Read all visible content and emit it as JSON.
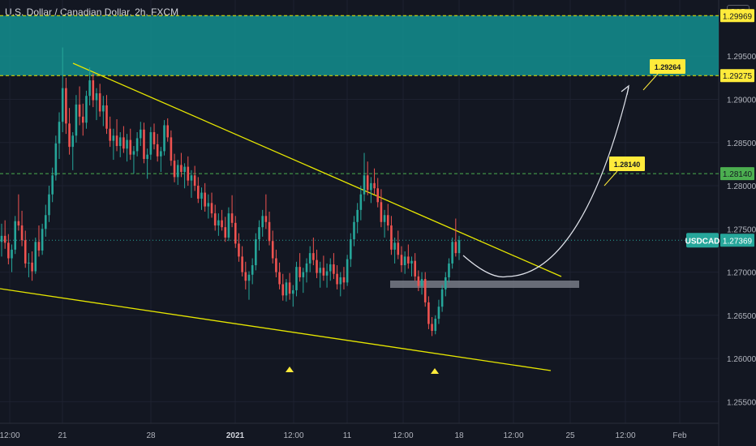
{
  "header": {
    "title": "U.S. Dollar / Canadian Dollar, 2h, FXCM"
  },
  "currency_badge": "CAD",
  "colors": {
    "background": "#131722",
    "up_candle": "#26a69a",
    "down_candle": "#ef5350",
    "trendline": "#e6e600",
    "zone": "#138f8f",
    "callout": "#ffeb3b",
    "support_box": "#787b86",
    "price_tag": "#26a69a"
  },
  "chart_data": {
    "type": "candlestick",
    "symbol": "USDCAD",
    "price_axis": {
      "ticks": [
        "1.29500",
        "1.29000",
        "1.28500",
        "1.28000",
        "1.27500",
        "1.27000",
        "1.26500",
        "1.26000",
        "1.25500"
      ],
      "range": [
        1.2525,
        1.3015
      ]
    },
    "time_axis": {
      "ticks": [
        "12:00",
        "21",
        "28",
        "2021",
        "12:00",
        "11",
        "12:00",
        "18",
        "12:00",
        "25",
        "12:00",
        "Feb"
      ]
    },
    "price_labels": [
      {
        "value": "1.29969",
        "style": "yellow-dashed"
      },
      {
        "value": "1.29275",
        "style": "yellow-dashed"
      },
      {
        "value": "1.28140",
        "style": "green-dashed"
      },
      {
        "value": "USDCAD",
        "value2": "1.27369",
        "style": "current"
      }
    ],
    "callouts": [
      "1.29264",
      "1.28140"
    ],
    "zone": {
      "top": 1.29969,
      "bottom": 1.29275
    },
    "current_price": 1.27369,
    "markers": [
      "triangle-up",
      "triangle-up"
    ],
    "candles": [
      [
        1.2735,
        1.2756,
        1.2718,
        1.2742
      ],
      [
        1.2742,
        1.276,
        1.2727,
        1.2734
      ],
      [
        1.2734,
        1.2744,
        1.2709,
        1.2716
      ],
      [
        1.2716,
        1.2732,
        1.27,
        1.2726
      ],
      [
        1.2726,
        1.2765,
        1.2721,
        1.2759
      ],
      [
        1.2759,
        1.279,
        1.2748,
        1.2754
      ],
      [
        1.2754,
        1.2771,
        1.273,
        1.2737
      ],
      [
        1.2737,
        1.2748,
        1.2705,
        1.271
      ],
      [
        1.271,
        1.2722,
        1.2694,
        1.2711
      ],
      [
        1.2711,
        1.2724,
        1.269,
        1.2701
      ],
      [
        1.2701,
        1.274,
        1.2698,
        1.2735
      ],
      [
        1.2735,
        1.2754,
        1.2718,
        1.2725
      ],
      [
        1.2725,
        1.2756,
        1.272,
        1.275
      ],
      [
        1.275,
        1.2778,
        1.2741,
        1.2766
      ],
      [
        1.2766,
        1.28,
        1.2758,
        1.279
      ],
      [
        1.279,
        1.2821,
        1.2781,
        1.2812
      ],
      [
        1.2812,
        1.2858,
        1.2806,
        1.2849
      ],
      [
        1.2849,
        1.2885,
        1.2831,
        1.2874
      ],
      [
        1.2874,
        1.296,
        1.2862,
        1.2913
      ],
      [
        1.2913,
        1.2925,
        1.286,
        1.2872
      ],
      [
        1.2872,
        1.289,
        1.2836,
        1.2845
      ],
      [
        1.2845,
        1.2862,
        1.2818,
        1.2858
      ],
      [
        1.2858,
        1.2905,
        1.285,
        1.2894
      ],
      [
        1.2894,
        1.2915,
        1.287,
        1.288
      ],
      [
        1.288,
        1.2895,
        1.2858,
        1.2873
      ],
      [
        1.2873,
        1.291,
        1.2866,
        1.2904
      ],
      [
        1.2904,
        1.2937,
        1.2893,
        1.2922
      ],
      [
        1.2922,
        1.293,
        1.2891,
        1.2899
      ],
      [
        1.2899,
        1.2913,
        1.2876,
        1.2907
      ],
      [
        1.2907,
        1.2918,
        1.288,
        1.2886
      ],
      [
        1.2886,
        1.2904,
        1.2869,
        1.2893
      ],
      [
        1.2893,
        1.2905,
        1.286,
        1.2866
      ],
      [
        1.2866,
        1.288,
        1.2845,
        1.2852
      ],
      [
        1.2852,
        1.2866,
        1.283,
        1.2858
      ],
      [
        1.2858,
        1.2877,
        1.284,
        1.2846
      ],
      [
        1.2846,
        1.2862,
        1.2833,
        1.2856
      ],
      [
        1.2856,
        1.2869,
        1.2838,
        1.2843
      ],
      [
        1.2843,
        1.286,
        1.2828,
        1.2853
      ],
      [
        1.2853,
        1.2866,
        1.283,
        1.2836
      ],
      [
        1.2836,
        1.2846,
        1.2814,
        1.284
      ],
      [
        1.284,
        1.2862,
        1.2834,
        1.2855
      ],
      [
        1.2855,
        1.2874,
        1.2846,
        1.2865
      ],
      [
        1.2865,
        1.2873,
        1.2826,
        1.2831
      ],
      [
        1.2831,
        1.2843,
        1.2808,
        1.2836
      ],
      [
        1.2836,
        1.2868,
        1.283,
        1.2862
      ],
      [
        1.2862,
        1.2872,
        1.2842,
        1.2848
      ],
      [
        1.2848,
        1.286,
        1.2828,
        1.2834
      ],
      [
        1.2834,
        1.2845,
        1.2816,
        1.284
      ],
      [
        1.284,
        1.2876,
        1.2835,
        1.287
      ],
      [
        1.287,
        1.2878,
        1.2851,
        1.2856
      ],
      [
        1.2856,
        1.2864,
        1.2823,
        1.2829
      ],
      [
        1.2829,
        1.2837,
        1.2804,
        1.281
      ],
      [
        1.281,
        1.283,
        1.2801,
        1.2824
      ],
      [
        1.2824,
        1.2838,
        1.281,
        1.2816
      ],
      [
        1.2816,
        1.2826,
        1.2797,
        1.2822
      ],
      [
        1.2822,
        1.2834,
        1.28,
        1.2806
      ],
      [
        1.2806,
        1.2818,
        1.2786,
        1.2812
      ],
      [
        1.2812,
        1.2823,
        1.2794,
        1.28
      ],
      [
        1.28,
        1.281,
        1.278,
        1.2785
      ],
      [
        1.2785,
        1.2798,
        1.2772,
        1.2792
      ],
      [
        1.2792,
        1.2803,
        1.277,
        1.2776
      ],
      [
        1.2776,
        1.279,
        1.2762,
        1.278
      ],
      [
        1.278,
        1.2792,
        1.2763,
        1.2768
      ],
      [
        1.2768,
        1.2778,
        1.2748,
        1.2754
      ],
      [
        1.2754,
        1.2768,
        1.2742,
        1.276
      ],
      [
        1.276,
        1.2772,
        1.2748,
        1.2752
      ],
      [
        1.2752,
        1.2764,
        1.2735,
        1.274
      ],
      [
        1.274,
        1.2775,
        1.2736,
        1.2768
      ],
      [
        1.2768,
        1.2789,
        1.2752,
        1.2757
      ],
      [
        1.2757,
        1.2765,
        1.2728,
        1.2733
      ],
      [
        1.2733,
        1.2745,
        1.2712,
        1.2718
      ],
      [
        1.2718,
        1.273,
        1.2695,
        1.27
      ],
      [
        1.27,
        1.2712,
        1.268,
        1.269
      ],
      [
        1.269,
        1.2701,
        1.2668,
        1.2697
      ],
      [
        1.2697,
        1.2716,
        1.2686,
        1.2708
      ],
      [
        1.2708,
        1.2745,
        1.2702,
        1.2738
      ],
      [
        1.2738,
        1.276,
        1.2725,
        1.2752
      ],
      [
        1.2752,
        1.2772,
        1.2741,
        1.2765
      ],
      [
        1.2765,
        1.279,
        1.275,
        1.2758
      ],
      [
        1.2758,
        1.277,
        1.2731,
        1.2736
      ],
      [
        1.2736,
        1.2748,
        1.271,
        1.2716
      ],
      [
        1.2716,
        1.2726,
        1.2694,
        1.27
      ],
      [
        1.27,
        1.2711,
        1.268,
        1.2686
      ],
      [
        1.2686,
        1.2698,
        1.2667,
        1.2673
      ],
      [
        1.2673,
        1.2692,
        1.2666,
        1.2688
      ],
      [
        1.2688,
        1.2699,
        1.2668,
        1.2675
      ],
      [
        1.2675,
        1.2685,
        1.266,
        1.2679
      ],
      [
        1.2679,
        1.2712,
        1.2672,
        1.2706
      ],
      [
        1.2706,
        1.2722,
        1.2689,
        1.2694
      ],
      [
        1.2694,
        1.2705,
        1.2676,
        1.27
      ],
      [
        1.27,
        1.2716,
        1.2688,
        1.271
      ],
      [
        1.271,
        1.273,
        1.27,
        1.2722
      ],
      [
        1.2722,
        1.274,
        1.2708,
        1.2714
      ],
      [
        1.2714,
        1.2726,
        1.2693,
        1.2699
      ],
      [
        1.2699,
        1.2712,
        1.2682,
        1.2705
      ],
      [
        1.2705,
        1.2719,
        1.269,
        1.2696
      ],
      [
        1.2696,
        1.271,
        1.2682,
        1.2701
      ],
      [
        1.2701,
        1.2716,
        1.269,
        1.2709
      ],
      [
        1.2709,
        1.2722,
        1.2692,
        1.2698
      ],
      [
        1.2698,
        1.2708,
        1.268,
        1.2686
      ],
      [
        1.2686,
        1.27,
        1.2672,
        1.2694
      ],
      [
        1.2694,
        1.2706,
        1.268,
        1.2688
      ],
      [
        1.2688,
        1.272,
        1.2684,
        1.2715
      ],
      [
        1.2715,
        1.2745,
        1.2706,
        1.2738
      ],
      [
        1.2738,
        1.2765,
        1.273,
        1.2758
      ],
      [
        1.2758,
        1.278,
        1.2745,
        1.2772
      ],
      [
        1.2772,
        1.28,
        1.276,
        1.279
      ],
      [
        1.279,
        1.2838,
        1.2782,
        1.2812
      ],
      [
        1.2812,
        1.2828,
        1.2789,
        1.2795
      ],
      [
        1.2795,
        1.281,
        1.278,
        1.2803
      ],
      [
        1.2803,
        1.282,
        1.279,
        1.2797
      ],
      [
        1.2797,
        1.2809,
        1.2775,
        1.2781
      ],
      [
        1.2781,
        1.2796,
        1.2752,
        1.2758
      ],
      [
        1.2758,
        1.2772,
        1.274,
        1.2766
      ],
      [
        1.2766,
        1.2779,
        1.2748,
        1.2754
      ],
      [
        1.2754,
        1.2765,
        1.272,
        1.2726
      ],
      [
        1.2726,
        1.274,
        1.271,
        1.2734
      ],
      [
        1.2734,
        1.2748,
        1.2715,
        1.272
      ],
      [
        1.272,
        1.273,
        1.27,
        1.2708
      ],
      [
        1.2708,
        1.2724,
        1.2698,
        1.2718
      ],
      [
        1.2718,
        1.2732,
        1.2704,
        1.271
      ],
      [
        1.271,
        1.2718,
        1.2695,
        1.2713
      ],
      [
        1.2713,
        1.2722,
        1.269,
        1.2695
      ],
      [
        1.2695,
        1.2702,
        1.2678,
        1.2684
      ],
      [
        1.2684,
        1.27,
        1.2674,
        1.2692
      ],
      [
        1.2692,
        1.27,
        1.266,
        1.2665
      ],
      [
        1.2665,
        1.2672,
        1.2634,
        1.264
      ],
      [
        1.264,
        1.2648,
        1.2626,
        1.2632
      ],
      [
        1.2632,
        1.265,
        1.2628,
        1.2646
      ],
      [
        1.2646,
        1.2668,
        1.264,
        1.266
      ],
      [
        1.266,
        1.2685,
        1.2654,
        1.268
      ],
      [
        1.268,
        1.27,
        1.2672,
        1.2694
      ],
      [
        1.2694,
        1.2716,
        1.2688,
        1.271
      ],
      [
        1.271,
        1.274,
        1.2704,
        1.2735
      ],
      [
        1.2735,
        1.2762,
        1.2718,
        1.2722
      ],
      [
        1.2722,
        1.2742,
        1.2714,
        1.2737
      ]
    ]
  }
}
